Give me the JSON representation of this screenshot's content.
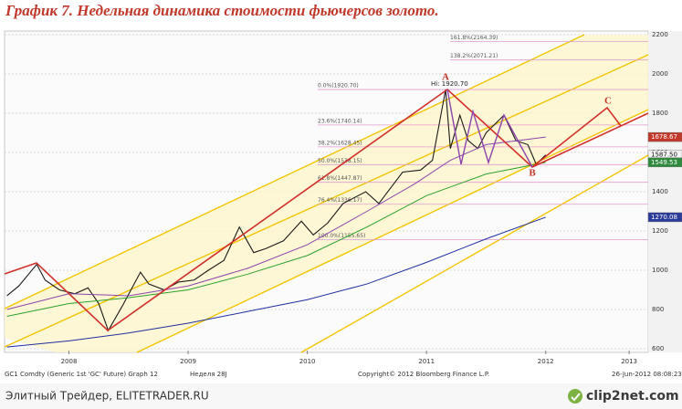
{
  "chart_data": {
    "type": "line",
    "title": "График 7.   Недельная динамика стоимости фьючерсов золото.",
    "xlim": [
      2007.96,
      2013.36
    ],
    "ylim": [
      600,
      2200
    ],
    "xticks": [
      {
        "value": 2008.5,
        "label": "2008"
      },
      {
        "value": 2009.5,
        "label": "2009"
      },
      {
        "value": 2010.5,
        "label": "2010"
      },
      {
        "value": 2011.5,
        "label": "2011"
      },
      {
        "value": 2012.5,
        "label": "2012"
      },
      {
        "value": 2013.2,
        "label": "2013"
      }
    ],
    "yticks": [
      600,
      800,
      1000,
      1200,
      1400,
      1600,
      1800,
      2000,
      2200
    ],
    "grid": true,
    "series": [
      {
        "color": "#1a1a1a",
        "x": [
          2007.98,
          2008.08,
          2008.23,
          2008.3,
          2008.42,
          2008.55,
          2008.66,
          2008.75,
          2008.83,
          2008.95,
          2009.1,
          2009.17,
          2009.3,
          2009.42,
          2009.55,
          2009.67,
          2009.8,
          2009.93,
          2010.05,
          2010.15,
          2010.3,
          2010.45,
          2010.55,
          2010.67,
          2010.8,
          2010.99,
          2011.1,
          2011.2,
          2011.3,
          2011.45,
          2011.55,
          2011.66,
          2011.7,
          2011.78,
          2011.85,
          2011.93,
          2012.0,
          2012.1,
          2012.15,
          2012.25,
          2012.35,
          2012.42,
          2012.5
        ],
        "values": [
          870,
          920,
          1030,
          950,
          900,
          880,
          910,
          830,
          693,
          820,
          990,
          930,
          900,
          940,
          950,
          1000,
          1050,
          1220,
          1090,
          1110,
          1150,
          1250,
          1180,
          1240,
          1340,
          1400,
          1340,
          1420,
          1500,
          1510,
          1560,
          1920,
          1620,
          1790,
          1660,
          1620,
          1700,
          1760,
          1790,
          1660,
          1640,
          1540,
          1587.5
        ]
      },
      {
        "color": "#8e44ad",
        "x": [
          2007.98,
          2008.5,
          2009.0,
          2009.5,
          2010.0,
          2010.5,
          2011.0,
          2011.4,
          2011.7,
          2012.0,
          2012.5
        ],
        "values": [
          800,
          880,
          870,
          920,
          1010,
          1130,
          1300,
          1440,
          1560,
          1640,
          1678.67
        ]
      },
      {
        "color": "#2ca02c",
        "x": [
          2007.98,
          2008.5,
          2009.0,
          2009.5,
          2010.0,
          2010.5,
          2011.0,
          2011.5,
          2012.0,
          2012.5
        ],
        "values": [
          765,
          830,
          860,
          900,
          980,
          1075,
          1220,
          1380,
          1490,
          1549.53
        ]
      },
      {
        "color": "#1f2f9f",
        "x": [
          2007.98,
          2008.5,
          2009.0,
          2009.5,
          2010.0,
          2010.5,
          2011.0,
          2011.5,
          2012.0,
          2012.5
        ],
        "values": [
          609,
          640,
          680,
          730,
          790,
          850,
          930,
          1040,
          1160,
          1270.08
        ]
      }
    ],
    "price_tags": [
      {
        "value": 1678.67,
        "label": "1678.67",
        "color": "#c0392b"
      },
      {
        "value": 1587.5,
        "label": "1587.50",
        "color": "#f4f4f4"
      },
      {
        "value": 1549.53,
        "label": "1549.53",
        "color": "#2e8b3e"
      },
      {
        "value": 1270.08,
        "label": "1270.08",
        "color": "#2a3b9a"
      }
    ],
    "fib_levels": [
      {
        "value": 2164.39,
        "label": "161.8%(2164.39)"
      },
      {
        "value": 2071.21,
        "label": "138.2%(2071.21)"
      },
      {
        "value": 1920.7,
        "label": "0.0%(1920.70)"
      },
      {
        "value": 1740.14,
        "label": "23.6%(1740.14)"
      },
      {
        "value": 1628.45,
        "label": "38.2%(1628.45)"
      },
      {
        "value": 1538.15,
        "label": "50.0%(1538.15)"
      },
      {
        "value": 1447.87,
        "label": "61.8%(1447.87)"
      },
      {
        "value": 1336.17,
        "label": "76.4%(1336.17)"
      },
      {
        "value": 1155.65,
        "label": "100.0%(1155.65)"
      }
    ],
    "annotations": {
      "high": "Hi: 1920.70",
      "a": "A",
      "b": "B",
      "c": "C"
    },
    "footer": {
      "source": "GC1 Comdty (Generic 1st 'GC' Future) Graph 12",
      "period": "Неделя 28J",
      "copyright": "Copyright© 2012 Bloomberg Finance L.P.",
      "date": "26-Jun-2012 08:08:23"
    },
    "watermark": {
      "site": "Элитный Трейдер, ELITETRADER.RU",
      "logo": "clip2net.com"
    }
  }
}
